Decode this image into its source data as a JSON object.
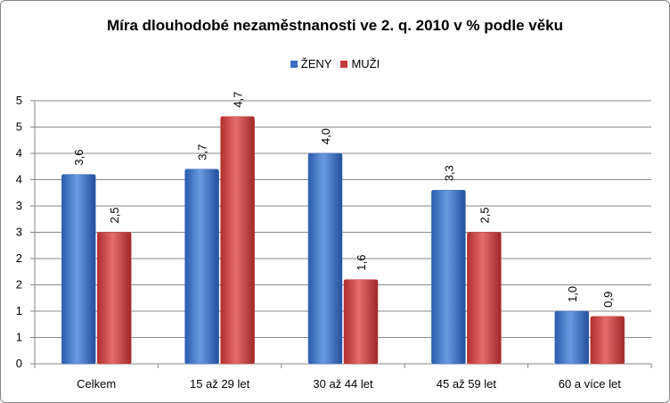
{
  "chart_data": {
    "type": "bar",
    "title": "Míra dlouhodobé nezaměstnanosti ve 2. q. 2010 v % podle věku",
    "categories": [
      "Celkem",
      "15  až  29  let",
      "30  až  44  let",
      "45  až  59  let",
      "60  a  více  let"
    ],
    "series": [
      {
        "name": "ŽENY",
        "values": [
          3.6,
          3.7,
          4.0,
          3.3,
          1.0
        ],
        "labels": [
          "3,6",
          "3,7",
          "4,0",
          "3,3",
          "1,0"
        ],
        "color": "#3A6FC4"
      },
      {
        "name": "MUŽI",
        "values": [
          2.5,
          4.7,
          1.6,
          2.5,
          0.9
        ],
        "labels": [
          "2,5",
          "4,7",
          "1,6",
          "2,5",
          "0,9"
        ],
        "color": "#C63A3A"
      }
    ],
    "ylim": [
      0,
      5
    ],
    "yticks": [
      0,
      0.5,
      1,
      1.5,
      2,
      2.5,
      3,
      3.5,
      4,
      4.5,
      5
    ],
    "ytick_labels": [
      "0",
      "1",
      "1",
      "2",
      "2",
      "3",
      "3",
      "4",
      "4",
      "5",
      "5"
    ],
    "xlabel": "",
    "ylabel": "",
    "grid": true,
    "legend_position": "top-center"
  }
}
